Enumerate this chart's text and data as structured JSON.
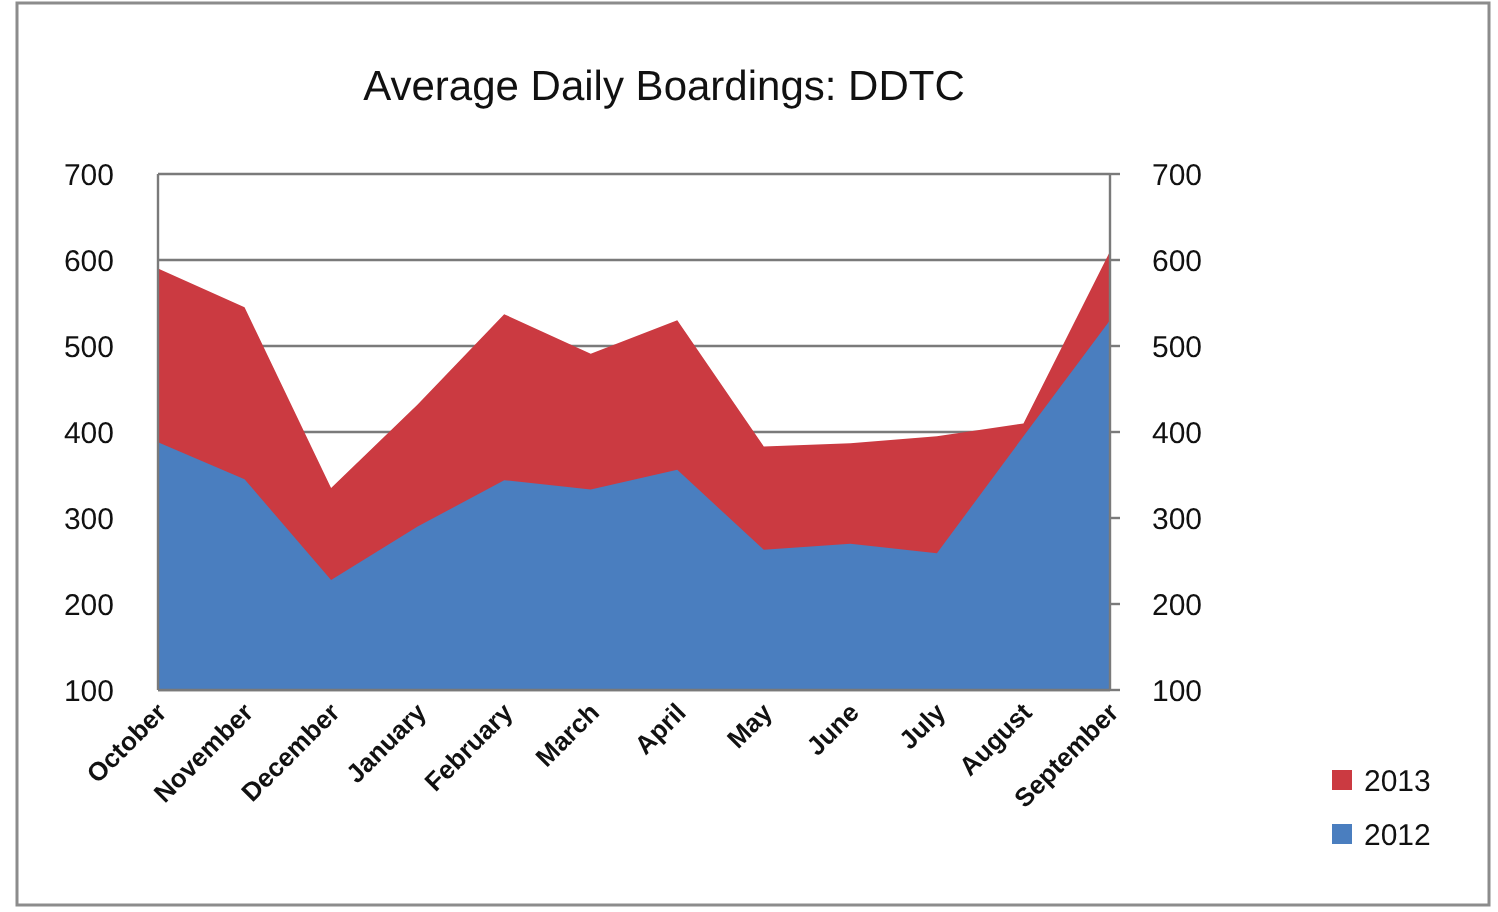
{
  "chart_data": {
    "type": "area",
    "title": "Average Daily Boardings: DDTC",
    "categories": [
      "October",
      "November",
      "December",
      "January",
      "February",
      "March",
      "April",
      "May",
      "June",
      "July",
      "August",
      "September"
    ],
    "series": [
      {
        "name": "2013",
        "color": "#cb3a41",
        "values": [
          590,
          545,
          335,
          432,
          537,
          491,
          530,
          383,
          387,
          395,
          410,
          610
        ]
      },
      {
        "name": "2012",
        "color": "#4a7ebf",
        "values": [
          388,
          345,
          228,
          290,
          344,
          333,
          356,
          263,
          270,
          259,
          395,
          530
        ]
      }
    ],
    "ylim": [
      100,
      700
    ],
    "yticks": [
      100,
      200,
      300,
      400,
      500,
      600,
      700
    ],
    "y2lim": [
      100,
      700
    ],
    "y2ticks": [
      100,
      200,
      300,
      400,
      500,
      600,
      700
    ],
    "grid": "y",
    "legend": "bottom right"
  }
}
